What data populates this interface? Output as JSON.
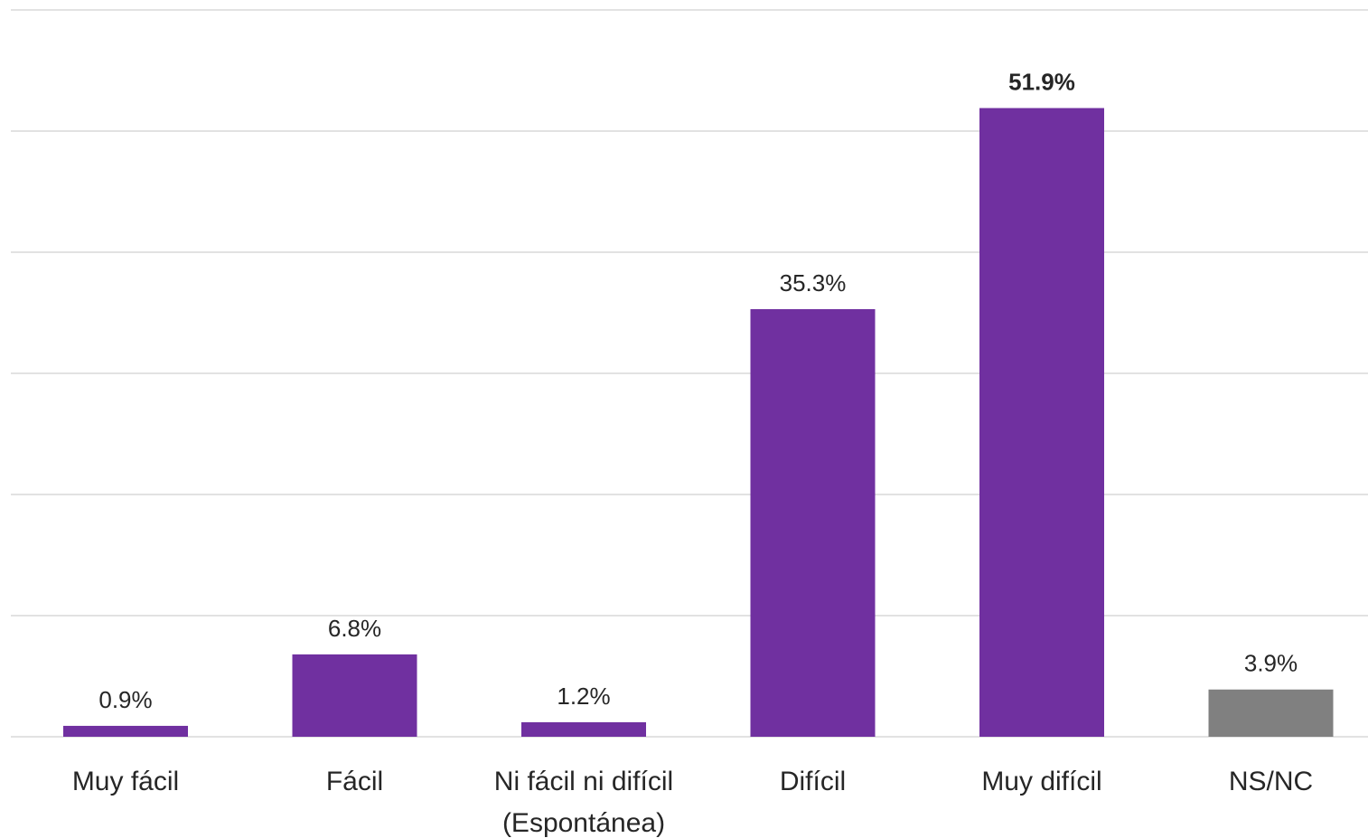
{
  "chart_data": {
    "type": "bar",
    "title": "",
    "xlabel": "",
    "ylabel": "",
    "ylim": [
      0,
      60
    ],
    "grid": true,
    "gridlines": [
      0,
      10,
      20,
      30,
      40,
      50,
      60
    ],
    "categories": [
      [
        "Muy fácil"
      ],
      [
        "Fácil"
      ],
      [
        "Ni fácil ni difícil",
        "(Espontánea)"
      ],
      [
        "Difícil"
      ],
      [
        "Muy difícil"
      ],
      [
        "NS/NC"
      ]
    ],
    "values": [
      0.9,
      6.8,
      1.2,
      35.3,
      51.9,
      3.9
    ],
    "data_labels": [
      "0.9%",
      "6.8%",
      "1.2%",
      "35.3%",
      "51.9%",
      "3.9%"
    ],
    "bold_labels": [
      false,
      false,
      false,
      false,
      true,
      false
    ],
    "bar_colors": [
      "#7030A0",
      "#7030A0",
      "#7030A0",
      "#7030A0",
      "#7030A0",
      "#808080"
    ],
    "colors": {
      "primary": "#7030A0",
      "neutral": "#808080",
      "grid": "#D9D9D9",
      "text": "#262626"
    }
  }
}
